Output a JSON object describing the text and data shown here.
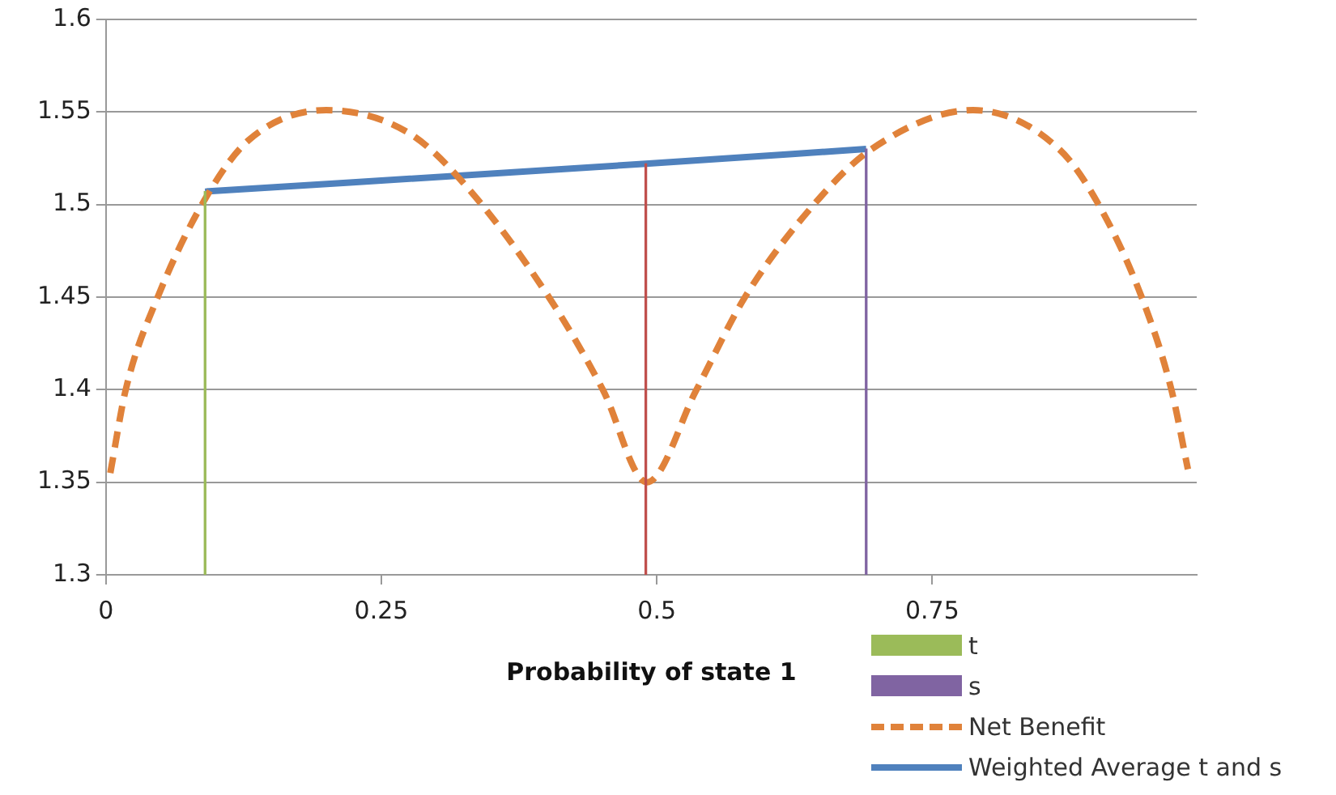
{
  "chart_data": {
    "type": "line",
    "xlabel": "Probability of state 1",
    "xlim": [
      0,
      0.99
    ],
    "xticks": [
      0,
      0.25,
      0.5,
      0.75
    ],
    "ylim": [
      1.3,
      1.6
    ],
    "yticks": [
      1.3,
      1.35,
      1.4,
      1.45,
      1.5,
      1.55,
      1.6
    ],
    "grid": "y",
    "legend": "bottom right",
    "series": [
      {
        "name": "t",
        "type": "bar",
        "color": "#9bbb59",
        "x": [
          0.09
        ],
        "values": [
          1.507
        ]
      },
      {
        "name": "s",
        "type": "bar",
        "color": "#8064a2",
        "x": [
          0.69
        ],
        "values": [
          1.53
        ]
      },
      {
        "type": "bar",
        "color": "#c0504d",
        "x": [
          0.49
        ],
        "values": [
          1.522
        ]
      },
      {
        "name": "Net Benefit",
        "line_style": "dashed",
        "color": "#e0823a",
        "x": [
          0.004,
          0.018,
          0.047,
          0.092,
          0.13,
          0.2,
          0.274,
          0.324,
          0.402,
          0.451,
          0.491,
          0.536,
          0.58,
          0.644,
          0.695,
          0.787,
          0.865,
          0.9,
          0.94,
          0.967,
          0.982
        ],
        "values": [
          1.355,
          1.4,
          1.45,
          1.505,
          1.535,
          1.551,
          1.539,
          1.512,
          1.45,
          1.4,
          1.35,
          1.4,
          1.45,
          1.501,
          1.53,
          1.551,
          1.53,
          1.501,
          1.45,
          1.4,
          1.357
        ]
      },
      {
        "name": "Weighted Average t and s",
        "line_style": "solid",
        "color": "#4f81bd",
        "x": [
          0.09,
          0.49,
          0.69
        ],
        "values": [
          1.507,
          1.522,
          1.53
        ]
      }
    ]
  }
}
